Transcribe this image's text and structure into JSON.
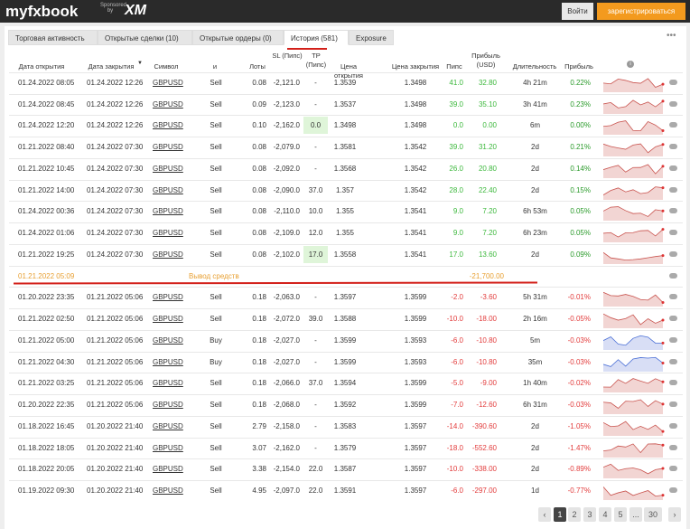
{
  "header": {
    "logo": "myfxbook",
    "sponsored": "Sponsored by",
    "sponsor": "XM",
    "login": "Войти",
    "register": "зарегистрироваться"
  },
  "tabs": [
    "Торговая активность",
    "Открытые сделки (10)",
    "Открытые ордеры (0)",
    "История (581)",
    "Exposure"
  ],
  "table": {
    "headers": [
      "Дата открытия",
      "Дата закрытия",
      "Символ",
      "и",
      "Лоты",
      "SL (Пипс)",
      "TP (Пипс)",
      "Цена открытия",
      "Цена закрытия",
      "Пипс",
      "Прибыль (USD)",
      "Длительность",
      "Прибыль"
    ],
    "rows": [
      [
        "01.24.2022 08:05",
        "01.24.2022 12:26",
        "GBPUSD",
        "Sell",
        "0.08",
        "-2,121.0",
        "-",
        "1.3539",
        "1.3498",
        "41.0",
        "32.80",
        "4h 21m",
        "0.22%"
      ],
      [
        "01.24.2022 08:45",
        "01.24.2022 12:26",
        "GBPUSD",
        "Sell",
        "0.09",
        "-2,123.0",
        "-",
        "1.3537",
        "1.3498",
        "39.0",
        "35.10",
        "3h 41m",
        "0.23%"
      ],
      [
        "01.24.2022 12:20",
        "01.24.2022 12:26",
        "GBPUSD",
        "Sell",
        "0.10",
        "-2,162.0",
        "0.0",
        "1.3498",
        "1.3498",
        "0.0",
        "0.00",
        "6m",
        "0.00%"
      ],
      [
        "01.21.2022 08:40",
        "01.24.2022 07:30",
        "GBPUSD",
        "Sell",
        "0.08",
        "-2,079.0",
        "-",
        "1.3581",
        "1.3542",
        "39.0",
        "31.20",
        "2d",
        "0.21%"
      ],
      [
        "01.21.2022 10:45",
        "01.24.2022 07:30",
        "GBPUSD",
        "Sell",
        "0.08",
        "-2,092.0",
        "-",
        "1.3568",
        "1.3542",
        "26.0",
        "20.80",
        "2d",
        "0.14%"
      ],
      [
        "01.21.2022 14:00",
        "01.24.2022 07:30",
        "GBPUSD",
        "Sell",
        "0.08",
        "-2,090.0",
        "37.0",
        "1.357",
        "1.3542",
        "28.0",
        "22.40",
        "2d",
        "0.15%"
      ],
      [
        "01.24.2022 00:36",
        "01.24.2022 07:30",
        "GBPUSD",
        "Sell",
        "0.08",
        "-2,110.0",
        "10.0",
        "1.355",
        "1.3541",
        "9.0",
        "7.20",
        "6h 53m",
        "0.05%"
      ],
      [
        "01.24.2022 01:06",
        "01.24.2022 07:30",
        "GBPUSD",
        "Sell",
        "0.08",
        "-2,109.0",
        "12.0",
        "1.355",
        "1.3541",
        "9.0",
        "7.20",
        "6h 23m",
        "0.05%"
      ],
      [
        "01.21.2022 19:25",
        "01.24.2022 07:30",
        "GBPUSD",
        "Sell",
        "0.08",
        "-2,102.0",
        "17.0",
        "1.3558",
        "1.3541",
        "17.0",
        "13.60",
        "2d",
        "0.09%"
      ],
      {
        "date": "01.21.2022 05:09",
        "label": "Вывод средств",
        "amount": "-21,700.00"
      },
      [
        "01.20.2022 23:35",
        "01.21.2022 05:06",
        "GBPUSD",
        "Sell",
        "0.18",
        "-2,063.0",
        "-",
        "1.3597",
        "1.3599",
        "-2.0",
        "-3.60",
        "5h 31m",
        "-0.01%"
      ],
      [
        "01.21.2022 02:50",
        "01.21.2022 05:06",
        "GBPUSD",
        "Sell",
        "0.18",
        "-2,072.0",
        "39.0",
        "1.3588",
        "1.3599",
        "-10.0",
        "-18.00",
        "2h 16m",
        "-0.05%"
      ],
      [
        "01.21.2022 05:00",
        "01.21.2022 05:06",
        "GBPUSD",
        "Buy",
        "0.18",
        "-2,027.0",
        "-",
        "1.3599",
        "1.3593",
        "-6.0",
        "-10.80",
        "5m",
        "-0.03%"
      ],
      [
        "01.21.2022 04:30",
        "01.21.2022 05:06",
        "GBPUSD",
        "Buy",
        "0.18",
        "-2,027.0",
        "-",
        "1.3599",
        "1.3593",
        "-6.0",
        "-10.80",
        "35m",
        "-0.03%"
      ],
      [
        "01.21.2022 03:25",
        "01.21.2022 05:06",
        "GBPUSD",
        "Sell",
        "0.18",
        "-2,066.0",
        "37.0",
        "1.3594",
        "1.3599",
        "-5.0",
        "-9.00",
        "1h 40m",
        "-0.02%"
      ],
      [
        "01.20.2022 22:35",
        "01.21.2022 05:06",
        "GBPUSD",
        "Sell",
        "0.18",
        "-2,068.0",
        "-",
        "1.3592",
        "1.3599",
        "-7.0",
        "-12.60",
        "6h 31m",
        "-0.03%"
      ],
      [
        "01.18.2022 16:45",
        "01.20.2022 21:40",
        "GBPUSD",
        "Sell",
        "2.79",
        "-2,158.0",
        "-",
        "1.3583",
        "1.3597",
        "-14.0",
        "-390.60",
        "2d",
        "-1.05%"
      ],
      [
        "01.18.2022 18:05",
        "01.20.2022 21:40",
        "GBPUSD",
        "Sell",
        "3.07",
        "-2,162.0",
        "-",
        "1.3579",
        "1.3597",
        "-18.0",
        "-552.60",
        "2d",
        "-1.47%"
      ],
      [
        "01.18.2022 20:05",
        "01.20.2022 21:40",
        "GBPUSD",
        "Sell",
        "3.38",
        "-2,154.0",
        "22.0",
        "1.3587",
        "1.3597",
        "-10.0",
        "-338.00",
        "2d",
        "-0.89%"
      ],
      [
        "01.19.2022 09:30",
        "01.20.2022 21:40",
        "GBPUSD",
        "Sell",
        "4.95",
        "-2,097.0",
        "22.0",
        "1.3591",
        "1.3597",
        "-6.0",
        "-297.00",
        "1d",
        "-0.77%"
      ]
    ]
  },
  "pagination": [
    "1",
    "2",
    "3",
    "4",
    "5",
    "...",
    "30"
  ]
}
